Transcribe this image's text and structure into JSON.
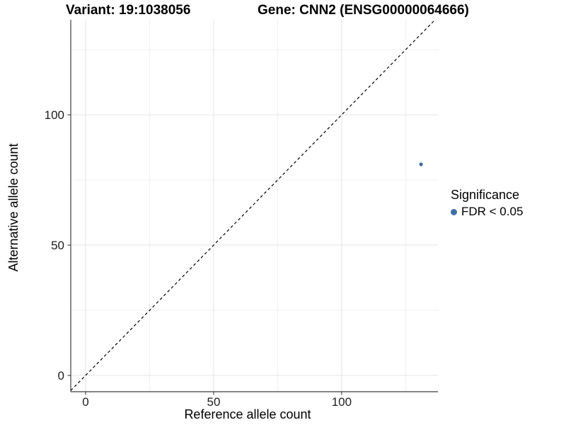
{
  "chart_data": {
    "type": "scatter",
    "title_left": "Variant: 19:1038056",
    "title_right": "Gene: CNN2 (ENSG00000064666)",
    "xlabel": "Reference allele count",
    "ylabel": "Alternative allele count",
    "xlim": [
      -5.8,
      137.6
    ],
    "ylim": [
      -6.25,
      136.45
    ],
    "x_ticks": {
      "major": [
        0,
        50,
        100
      ],
      "minor": [
        25,
        75,
        125
      ]
    },
    "y_ticks": {
      "major": [
        0,
        50,
        100
      ],
      "minor": [
        25,
        75,
        125
      ]
    },
    "grid": "major+minor",
    "background": "#ffffff",
    "identity_line": {
      "slope": 1,
      "intercept": 0,
      "style": "dashed",
      "color": "#000000"
    },
    "series": [
      {
        "name": "FDR < 0.05",
        "color": "#406fa5",
        "point_radius": 2.6,
        "points": [
          {
            "x": 131,
            "y": 81
          }
        ]
      }
    ],
    "legend": {
      "title": "Significance",
      "position": "right",
      "entries": [
        {
          "label": "FDR < 0.05",
          "color": "#406fa5"
        }
      ]
    },
    "style_colors": {
      "grid_major": "#e6e6e6",
      "grid_minor": "#f1f1f1",
      "axis_line": "#3d3d3d",
      "tick_text": "#1e1e1e"
    }
  }
}
